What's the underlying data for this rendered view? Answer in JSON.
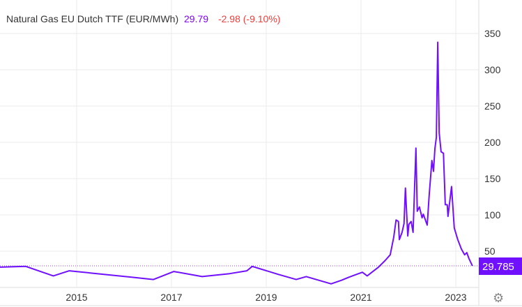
{
  "header": {
    "instrument": "Natural Gas EU Dutch TTF (EUR/MWh)",
    "last": "29.79",
    "change": "-2.98 (-9.10%)"
  },
  "price_label": "29.785",
  "settings_icon": "gear-icon",
  "colors": {
    "line": "#7010ff",
    "price_box": "#7010ff",
    "change": "#f23c3c",
    "grid": "#ebebeb"
  },
  "chart_data": {
    "type": "line",
    "title": "Natural Gas EU Dutch TTF (EUR/MWh)",
    "xlabel": "",
    "ylabel": "",
    "x_ticks": [
      "2015",
      "2017",
      "2019",
      "2021",
      "2023"
    ],
    "y_ticks": [
      50,
      100,
      150,
      200,
      250,
      300,
      350
    ],
    "ylim": [
      0,
      350
    ],
    "xlim": [
      "2013-05-18",
      "2023-05-20"
    ],
    "y_axis_side": "right",
    "grid": true,
    "current_value": 29.785,
    "series": [
      {
        "points": [
          [
            "2013-05-18",
            28
          ],
          [
            "2013-12-05",
            29
          ],
          [
            "2014-07-05",
            16
          ],
          [
            "2014-11-05",
            23
          ],
          [
            "2015-04-15",
            20
          ],
          [
            "2016-03-05",
            14
          ],
          [
            "2016-08-15",
            11
          ],
          [
            "2017-01-20",
            22
          ],
          [
            "2017-08-25",
            15
          ],
          [
            "2018-03-25",
            19
          ],
          [
            "2018-08-05",
            23
          ],
          [
            "2018-09-15",
            29
          ],
          [
            "2019-04-05",
            18
          ],
          [
            "2019-08-20",
            11
          ],
          [
            "2019-11-05",
            15
          ],
          [
            "2020-05-15",
            5
          ],
          [
            "2020-08-05",
            10
          ],
          [
            "2020-09-28",
            14
          ],
          [
            "2021-01-12",
            21
          ],
          [
            "2021-02-17",
            16
          ],
          [
            "2021-05-15",
            28
          ],
          [
            "2021-07-05",
            37
          ],
          [
            "2021-08-14",
            45
          ],
          [
            "2021-09-10",
            69
          ],
          [
            "2021-09-28",
            93
          ],
          [
            "2021-10-16",
            91
          ],
          [
            "2021-10-23",
            66
          ],
          [
            "2021-11-13",
            76
          ],
          [
            "2021-11-28",
            88
          ],
          [
            "2021-12-09",
            137
          ],
          [
            "2021-12-27",
            71
          ],
          [
            "2022-01-05",
            87
          ],
          [
            "2022-01-22",
            91
          ],
          [
            "2022-02-06",
            76
          ],
          [
            "2022-02-28",
            192
          ],
          [
            "2022-03-10",
            105
          ],
          [
            "2022-03-27",
            111
          ],
          [
            "2022-04-16",
            96
          ],
          [
            "2022-04-26",
            101
          ],
          [
            "2022-05-26",
            86
          ],
          [
            "2022-06-10",
            127
          ],
          [
            "2022-07-01",
            175
          ],
          [
            "2022-07-13",
            160
          ],
          [
            "2022-07-24",
            191
          ],
          [
            "2022-08-04",
            207
          ],
          [
            "2022-08-15",
            338
          ],
          [
            "2022-08-26",
            213
          ],
          [
            "2022-09-10",
            187
          ],
          [
            "2022-09-28",
            185
          ],
          [
            "2022-10-12",
            114
          ],
          [
            "2022-10-27",
            114
          ],
          [
            "2022-11-02",
            98
          ],
          [
            "2022-11-29",
            139
          ],
          [
            "2022-12-20",
            82
          ],
          [
            "2023-01-16",
            66
          ],
          [
            "2023-02-13",
            53
          ],
          [
            "2023-03-10",
            45
          ],
          [
            "2023-03-27",
            48
          ],
          [
            "2023-04-12",
            40
          ],
          [
            "2023-05-09",
            29.785
          ]
        ]
      }
    ]
  }
}
